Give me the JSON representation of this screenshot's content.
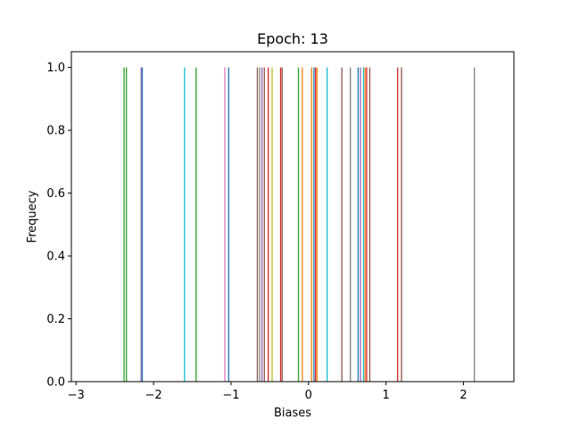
{
  "chart_data": {
    "type": "bar",
    "title": "Epoch: 13",
    "xlabel": "Biases",
    "ylabel": "Frequecy",
    "xlim": [
      -3.06,
      2.65
    ],
    "ylim": [
      0,
      1.05
    ],
    "grid": false,
    "x_ticks": [
      -3,
      -2,
      -1,
      0,
      1,
      2
    ],
    "x_tick_labels": [
      "−3",
      "−2",
      "−1",
      "0",
      "1",
      "2"
    ],
    "y_ticks": [
      0.0,
      0.2,
      0.4,
      0.6,
      0.8,
      1.0
    ],
    "y_tick_labels": [
      "0.0",
      "0.2",
      "0.4",
      "0.6",
      "0.8",
      "1.0"
    ],
    "bar_width": 0.015,
    "bars": [
      {
        "x": -2.38,
        "value": 1.0,
        "color": "#2ca02c"
      },
      {
        "x": -2.35,
        "value": 1.0,
        "color": "#2ca02c"
      },
      {
        "x": -2.16,
        "value": 1.0,
        "color": "#9467bd"
      },
      {
        "x": -2.145,
        "value": 1.0,
        "color": "#1f77b4"
      },
      {
        "x": -1.6,
        "value": 1.0,
        "color": "#17becf"
      },
      {
        "x": -1.45,
        "value": 1.0,
        "color": "#2ca02c"
      },
      {
        "x": -1.08,
        "value": 1.0,
        "color": "#e377c2"
      },
      {
        "x": -1.03,
        "value": 1.0,
        "color": "#1f77b4"
      },
      {
        "x": -0.66,
        "value": 1.0,
        "color": "#8c564b"
      },
      {
        "x": -0.63,
        "value": 1.0,
        "color": "#7f7f7f"
      },
      {
        "x": -0.6,
        "value": 1.0,
        "color": "#9467bd"
      },
      {
        "x": -0.57,
        "value": 1.0,
        "color": "#8c564b"
      },
      {
        "x": -0.52,
        "value": 1.0,
        "color": "#d62728"
      },
      {
        "x": -0.47,
        "value": 1.0,
        "color": "#bcbd22"
      },
      {
        "x": -0.36,
        "value": 1.0,
        "color": "#d62728"
      },
      {
        "x": -0.34,
        "value": 1.0,
        "color": "#8c564b"
      },
      {
        "x": -0.13,
        "value": 1.0,
        "color": "#2ca02c"
      },
      {
        "x": -0.08,
        "value": 1.0,
        "color": "#ff7f0e"
      },
      {
        "x": 0.04,
        "value": 1.0,
        "color": "#ff7f0e"
      },
      {
        "x": 0.07,
        "value": 1.0,
        "color": "#1f77b4"
      },
      {
        "x": 0.09,
        "value": 1.0,
        "color": "#d62728"
      },
      {
        "x": 0.11,
        "value": 1.0,
        "color": "#ff7f0e"
      },
      {
        "x": 0.24,
        "value": 1.0,
        "color": "#17becf"
      },
      {
        "x": 0.43,
        "value": 1.0,
        "color": "#8c564b"
      },
      {
        "x": 0.54,
        "value": 1.0,
        "color": "#7f7f7f"
      },
      {
        "x": 0.64,
        "value": 1.0,
        "color": "#1f77b4"
      },
      {
        "x": 0.67,
        "value": 1.0,
        "color": "#9467bd"
      },
      {
        "x": 0.71,
        "value": 1.0,
        "color": "#17becf"
      },
      {
        "x": 0.73,
        "value": 1.0,
        "color": "#ff7f0e"
      },
      {
        "x": 0.75,
        "value": 1.0,
        "color": "#d62728"
      },
      {
        "x": 0.79,
        "value": 1.0,
        "color": "#8c564b"
      },
      {
        "x": 1.15,
        "value": 1.0,
        "color": "#d62728"
      },
      {
        "x": 1.2,
        "value": 1.0,
        "color": "#8c564b"
      },
      {
        "x": 2.14,
        "value": 1.0,
        "color": "#7f7f7f"
      }
    ]
  }
}
